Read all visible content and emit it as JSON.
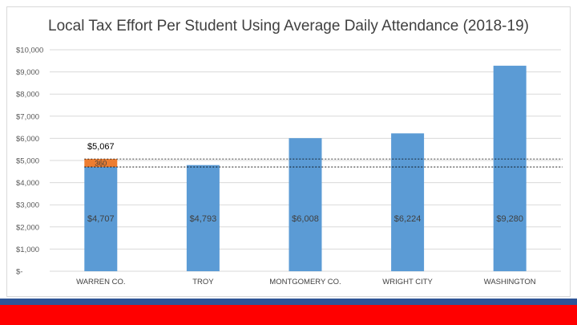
{
  "chart_data": {
    "type": "bar",
    "title": "Local Tax Effort Per Student Using Average Daily Attendance (2018-19)",
    "categories": [
      "WARREN CO.",
      "TROY",
      "MONTGOMERY CO.",
      "WRIGHT CITY",
      "WASHINGTON"
    ],
    "series": [
      {
        "values": [
          4707,
          4793,
          6008,
          6224,
          9280
        ],
        "color": "#5b9bd5",
        "labels": [
          "$4,707",
          "$4,793",
          "$6,008",
          "$6,224",
          "$9,280"
        ]
      },
      {
        "values": [
          360,
          0,
          0,
          0,
          0
        ],
        "color": "#ed7d31",
        "labels": [
          "360",
          "",
          "",
          "",
          ""
        ]
      }
    ],
    "stacked": true,
    "total_labels": [
      "$5,067",
      "",
      "",
      "",
      ""
    ],
    "reference_lines": [
      5067,
      4707
    ],
    "ylim": [
      0,
      10000
    ],
    "yticks": [
      0,
      1000,
      2000,
      3000,
      4000,
      5000,
      6000,
      7000,
      8000,
      9000,
      10000
    ],
    "ytick_labels": [
      "$-",
      "$1,000",
      "$2,000",
      "$3,000",
      "$4,000",
      "$5,000",
      "$6,000",
      "$7,000",
      "$8,000",
      "$9,000",
      "$10,000"
    ],
    "grid": true,
    "xlabel": "",
    "ylabel": ""
  },
  "colors": {
    "bar_primary": "#5b9bd5",
    "bar_secondary": "#ed7d31",
    "stripe_blue": "#2f5597",
    "stripe_red": "#ff0000"
  }
}
